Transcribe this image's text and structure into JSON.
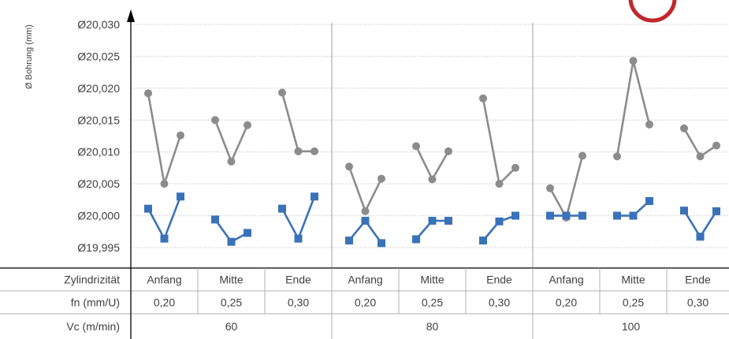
{
  "chart_data": {
    "type": "line",
    "ylabel": "Ø Bohrung (mm)",
    "ylim": [
      19.995,
      20.03
    ],
    "yticks": [
      {
        "value": 20.03,
        "label": "Ø20,030"
      },
      {
        "value": 20.025,
        "label": "Ø20,025"
      },
      {
        "value": 20.02,
        "label": "Ø20,020"
      },
      {
        "value": 20.015,
        "label": "Ø20,015"
      },
      {
        "value": 20.01,
        "label": "Ø20,010"
      },
      {
        "value": 20.005,
        "label": "Ø20,005"
      },
      {
        "value": 20.0,
        "label": "Ø20,000"
      },
      {
        "value": 19.995,
        "label": "Ø19,995"
      }
    ],
    "grid": true,
    "series": [
      {
        "marker": "circle",
        "color": "#8c8c8c",
        "groups": [
          [
            20.0192,
            20.005,
            20.0126
          ],
          [
            20.015,
            20.0085,
            20.0142
          ],
          [
            20.0193,
            20.0101,
            20.0101
          ],
          [
            20.0077,
            20.0007,
            20.0058
          ],
          [
            20.0109,
            20.0057,
            20.0101
          ],
          [
            20.0184,
            20.005,
            20.0075
          ],
          [
            20.0043,
            19.9997,
            20.0094
          ],
          [
            20.0093,
            20.0243,
            20.0143
          ],
          [
            20.0137,
            20.0093,
            20.011
          ]
        ]
      },
      {
        "marker": "square",
        "color": "#3a72b8",
        "groups": [
          [
            20.0011,
            19.9964,
            20.003
          ],
          [
            19.9994,
            19.9959,
            19.9973
          ],
          [
            20.0011,
            19.9964,
            20.003
          ],
          [
            19.9961,
            19.9992,
            19.9957
          ],
          [
            19.9963,
            19.9992,
            19.9992
          ],
          [
            19.9961,
            19.9991,
            20.0
          ],
          [
            20.0,
            20.0,
            20.0
          ],
          [
            20.0,
            20.0,
            20.0023
          ],
          [
            20.0008,
            19.9967,
            20.0007
          ]
        ]
      }
    ],
    "table": {
      "rows": [
        {
          "label": "Zylindrizität",
          "cells": [
            "Anfang",
            "Mitte",
            "Ende",
            "Anfang",
            "Mitte",
            "Ende",
            "Anfang",
            "Mitte",
            "Ende"
          ]
        },
        {
          "label": "fn (mm/U)",
          "cells": [
            "0,20",
            "0,25",
            "0,30",
            "0,20",
            "0,25",
            "0,30",
            "0,20",
            "0,25",
            "0,30"
          ]
        },
        {
          "label": "Vc (m/min)",
          "groups": [
            "60",
            "80",
            "100"
          ]
        }
      ]
    },
    "accent_color": "#c0282d"
  }
}
